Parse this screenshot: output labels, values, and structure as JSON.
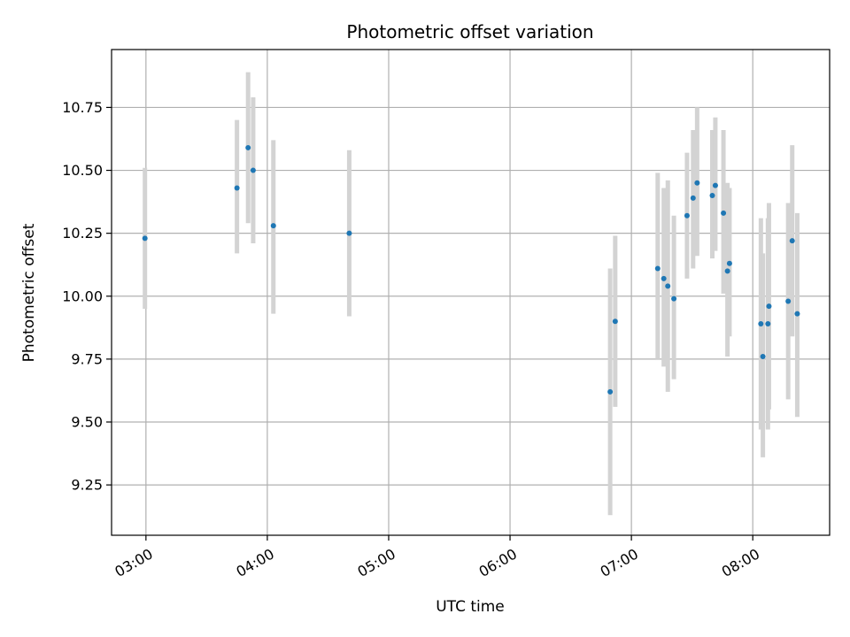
{
  "chart_data": {
    "type": "scatter",
    "title": "Photometric offset variation",
    "xlabel": "UTC time",
    "ylabel": "Photometric offset",
    "x_unit": "UTC time of day",
    "xlim": [
      "02:43",
      "08:38"
    ],
    "ylim": [
      9.05,
      10.98
    ],
    "x_ticks": [
      "03:00",
      "04:00",
      "05:00",
      "06:00",
      "07:00",
      "08:00"
    ],
    "y_ticks": [
      "9.25",
      "9.50",
      "9.75",
      "10.00",
      "10.25",
      "10.50",
      "10.75"
    ],
    "grid": true,
    "legend": "none",
    "series": [
      {
        "marker_color": "#1f77b4",
        "errorbar_color": "#d3d3d3",
        "points": [
          {
            "x": "02:59:30",
            "y": 10.23,
            "ylow": 9.95,
            "yhigh": 10.51
          },
          {
            "x": "03:45:00",
            "y": 10.43,
            "ylow": 10.17,
            "yhigh": 10.7
          },
          {
            "x": "03:50:30",
            "y": 10.59,
            "ylow": 10.29,
            "yhigh": 10.89
          },
          {
            "x": "03:53:00",
            "y": 10.5,
            "ylow": 10.21,
            "yhigh": 10.79
          },
          {
            "x": "04:03:00",
            "y": 10.28,
            "ylow": 9.93,
            "yhigh": 10.62
          },
          {
            "x": "04:40:30",
            "y": 10.25,
            "ylow": 9.92,
            "yhigh": 10.58
          },
          {
            "x": "06:49:30",
            "y": 9.62,
            "ylow": 9.13,
            "yhigh": 10.11
          },
          {
            "x": "06:52:00",
            "y": 9.9,
            "ylow": 9.56,
            "yhigh": 10.24
          },
          {
            "x": "07:13:00",
            "y": 10.11,
            "ylow": 9.75,
            "yhigh": 10.49
          },
          {
            "x": "07:16:00",
            "y": 10.07,
            "ylow": 9.72,
            "yhigh": 10.43
          },
          {
            "x": "07:18:00",
            "y": 10.04,
            "ylow": 9.62,
            "yhigh": 10.46
          },
          {
            "x": "07:21:00",
            "y": 9.99,
            "ylow": 9.67,
            "yhigh": 10.32
          },
          {
            "x": "07:27:30",
            "y": 10.32,
            "ylow": 10.07,
            "yhigh": 10.57
          },
          {
            "x": "07:30:30",
            "y": 10.39,
            "ylow": 10.11,
            "yhigh": 10.66
          },
          {
            "x": "07:32:30",
            "y": 10.45,
            "ylow": 10.16,
            "yhigh": 10.75
          },
          {
            "x": "07:40:00",
            "y": 10.4,
            "ylow": 10.15,
            "yhigh": 10.66
          },
          {
            "x": "07:41:30",
            "y": 10.44,
            "ylow": 10.18,
            "yhigh": 10.71
          },
          {
            "x": "07:45:30",
            "y": 10.33,
            "ylow": 10.01,
            "yhigh": 10.66
          },
          {
            "x": "07:47:30",
            "y": 10.1,
            "ylow": 9.76,
            "yhigh": 10.45
          },
          {
            "x": "07:48:30",
            "y": 10.13,
            "ylow": 9.84,
            "yhigh": 10.43
          },
          {
            "x": "08:04:00",
            "y": 9.89,
            "ylow": 9.47,
            "yhigh": 10.31
          },
          {
            "x": "08:05:00",
            "y": 9.76,
            "ylow": 9.36,
            "yhigh": 10.17
          },
          {
            "x": "08:07:30",
            "y": 9.89,
            "ylow": 9.47,
            "yhigh": 10.31
          },
          {
            "x": "08:08:00",
            "y": 9.96,
            "ylow": 9.55,
            "yhigh": 10.37
          },
          {
            "x": "08:17:30",
            "y": 9.98,
            "ylow": 9.59,
            "yhigh": 10.37
          },
          {
            "x": "08:19:30",
            "y": 10.22,
            "ylow": 9.84,
            "yhigh": 10.6
          },
          {
            "x": "08:22:00",
            "y": 9.93,
            "ylow": 9.52,
            "yhigh": 10.33
          }
        ]
      }
    ]
  }
}
